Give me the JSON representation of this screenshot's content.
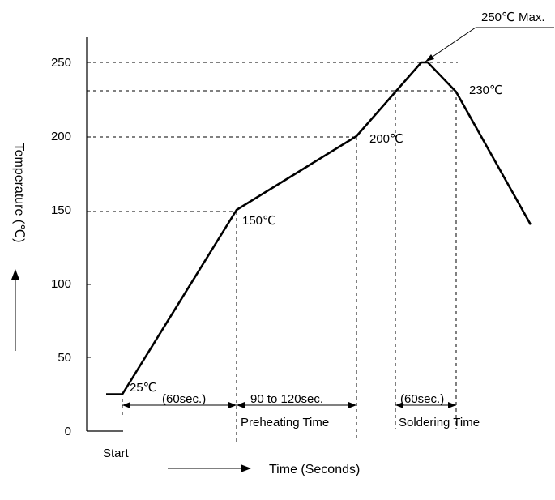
{
  "chart_data": {
    "type": "line",
    "ylabel": "Temperature (℃)",
    "xlabel": "Time (Seconds)",
    "ylim": [
      0,
      270
    ],
    "y_ticks": [
      0,
      50,
      100,
      150,
      200,
      250
    ],
    "grid": false,
    "series": [
      {
        "points": [
          {
            "t": -20,
            "temp": 25
          },
          {
            "t": 0,
            "temp": 25
          },
          {
            "t": 60,
            "temp": 150
          },
          {
            "t": 120,
            "temp": 200
          },
          {
            "t": 152,
            "temp": 250
          },
          {
            "t": 155,
            "temp": 250
          },
          {
            "t": 160,
            "temp": 230
          },
          {
            "t": 190,
            "temp": 140
          }
        ]
      }
    ],
    "point_labels": {
      "start_temp": "25℃",
      "preheat_start_temp": "150℃",
      "preheat_end_temp": "200℃",
      "soldering_temp": "230℃",
      "peak": "250℃ Max."
    },
    "intervals": {
      "ramp": "(60sec.)",
      "preheat_duration": "90 to 120sec.",
      "preheat_name": "Preheating Time",
      "soldering_duration": "(60sec.)",
      "soldering_name": "Soldering Time"
    },
    "start_label": "Start"
  }
}
